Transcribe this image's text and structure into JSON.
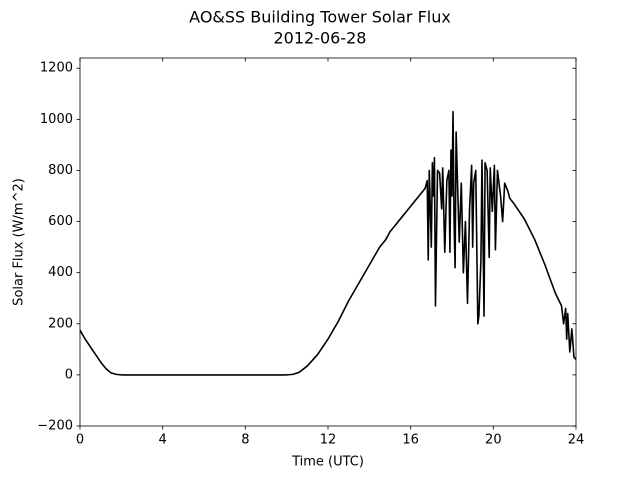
{
  "chart_data": {
    "type": "line",
    "title": "AO&SS Building Tower Solar Flux",
    "subtitle": "2012-06-28",
    "x_label": "Time (UTC)",
    "y_label": "Solar Flux (W/m^2)",
    "color": "#000000",
    "xlim": [
      0,
      24
    ],
    "xticks": [
      0,
      4,
      8,
      12,
      16,
      20,
      24
    ],
    "ylim": [
      -200,
      1240
    ],
    "yticks": [
      {
        "value": -200,
        "label": "−200"
      },
      0,
      200,
      400,
      600,
      800,
      1000,
      1200
    ],
    "x": [
      0,
      0.25,
      0.5,
      0.75,
      1.0,
      1.25,
      1.5,
      1.75,
      2.0,
      3,
      4,
      6,
      8,
      10,
      10.3,
      10.6,
      11,
      11.5,
      12,
      12.5,
      13,
      13.5,
      14,
      14.5,
      14.8,
      15,
      15.3,
      15.6,
      16,
      16.4,
      16.7,
      16.8,
      16.85,
      16.9,
      17.0,
      17.05,
      17.1,
      17.15,
      17.2,
      17.3,
      17.4,
      17.5,
      17.55,
      17.65,
      17.75,
      17.85,
      17.9,
      17.95,
      18.0,
      18.05,
      18.1,
      18.15,
      18.2,
      18.25,
      18.35,
      18.45,
      18.55,
      18.65,
      18.75,
      18.85,
      18.95,
      19.0,
      19.05,
      19.15,
      19.25,
      19.3,
      19.4,
      19.45,
      19.55,
      19.6,
      19.7,
      19.8,
      19.85,
      19.95,
      20.05,
      20.1,
      20.2,
      20.35,
      20.45,
      20.55,
      20.7,
      20.8,
      21,
      21.5,
      22,
      22.5,
      23,
      23.3,
      23.4,
      23.5,
      23.55,
      23.6,
      23.7,
      23.8,
      23.9,
      24
    ],
    "values": [
      175,
      140,
      110,
      80,
      50,
      25,
      8,
      2,
      0,
      0,
      0,
      0,
      0,
      0,
      2,
      10,
      35,
      80,
      140,
      210,
      290,
      360,
      430,
      500,
      530,
      560,
      590,
      620,
      660,
      700,
      730,
      760,
      450,
      800,
      500,
      830,
      700,
      850,
      270,
      800,
      790,
      650,
      810,
      480,
      760,
      800,
      480,
      880,
      700,
      1030,
      600,
      420,
      950,
      800,
      520,
      750,
      400,
      600,
      280,
      650,
      820,
      500,
      750,
      800,
      200,
      230,
      450,
      840,
      230,
      830,
      800,
      460,
      810,
      640,
      820,
      490,
      800,
      700,
      600,
      750,
      720,
      690,
      670,
      610,
      530,
      430,
      320,
      270,
      200,
      260,
      140,
      240,
      90,
      180,
      70,
      60
    ]
  }
}
